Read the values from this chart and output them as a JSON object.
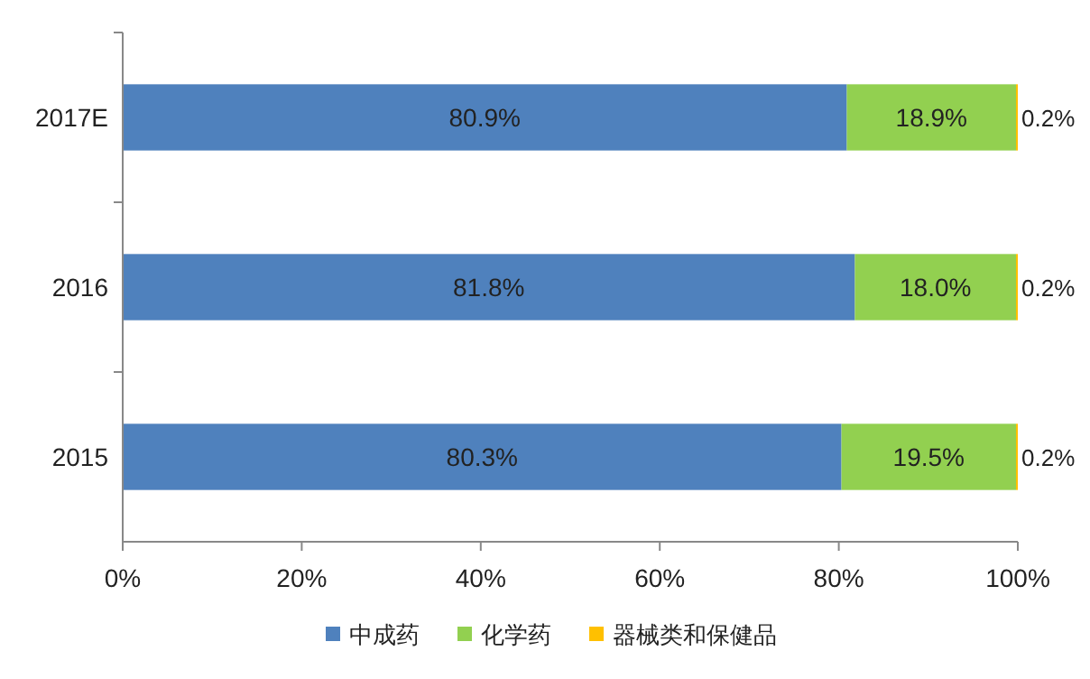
{
  "chart_data": {
    "type": "bar",
    "orientation": "horizontal",
    "stacked": true,
    "categories": [
      "2017E",
      "2016",
      "2015"
    ],
    "series": [
      {
        "name": "中成药",
        "color": "#4f81bd",
        "values": [
          80.9,
          81.8,
          80.3
        ],
        "value_labels": [
          "80.9%",
          "81.8%",
          "80.3%"
        ]
      },
      {
        "name": "化学药",
        "color": "#92d050",
        "values": [
          18.9,
          18.0,
          19.5
        ],
        "value_labels": [
          "18.9%",
          "18.0%",
          "19.5%"
        ]
      },
      {
        "name": "器械类和保健品",
        "color": "#ffc000",
        "values": [
          0.2,
          0.2,
          0.2
        ],
        "value_labels": [
          "0.2%",
          "0.2%",
          "0.2%"
        ]
      }
    ],
    "xlim": [
      0,
      100
    ],
    "xticks": [
      {
        "value": 0,
        "label": "0%"
      },
      {
        "value": 20,
        "label": "20%"
      },
      {
        "value": 40,
        "label": "40%"
      },
      {
        "value": 60,
        "label": "60%"
      },
      {
        "value": 80,
        "label": "80%"
      },
      {
        "value": 100,
        "label": "100%"
      }
    ],
    "legend": "bottom"
  }
}
